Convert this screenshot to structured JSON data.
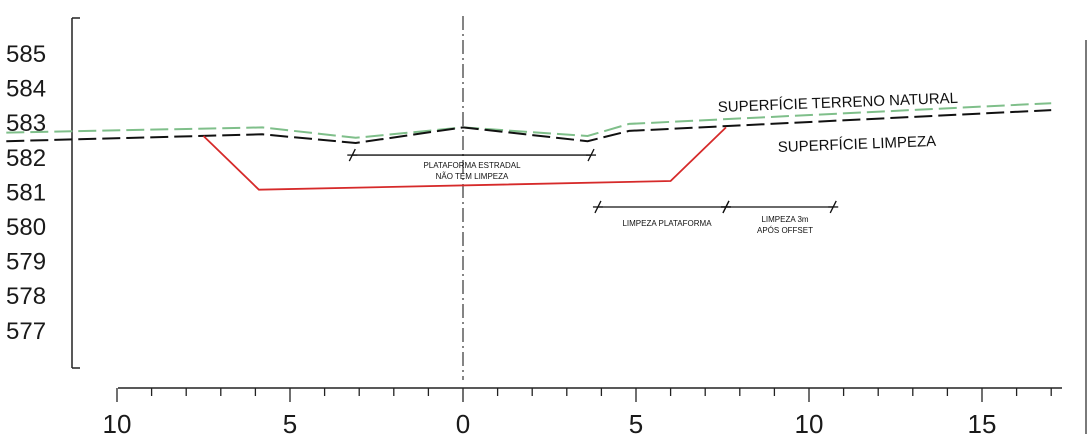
{
  "chart_data": {
    "type": "line",
    "y_ticks": [
      "585",
      "584",
      "583",
      "582",
      "581",
      "580",
      "579",
      "578",
      "577"
    ],
    "x_ticks": [
      "10",
      "5",
      "0",
      "5",
      "10",
      "15"
    ],
    "x_tick_values": [
      -10,
      -5,
      0,
      5,
      10,
      15
    ],
    "x_range": [
      -10,
      17
    ],
    "y_range": [
      576,
      586
    ],
    "labels": {
      "terreno": "SUPERFÍCIE TERRENO NATURAL",
      "limpeza": "SUPERFÍCIE LIMPEZA",
      "plataforma_l1": "PLATAFORMA ESTRADAL",
      "plataforma_l2": "NÃO TEM LIMPEZA",
      "limpeza_plataforma": "LIMPEZA PLATAFORMA",
      "limpeza3m_l1": "LIMPEZA 3m",
      "limpeza3m_l2": "APÓS OFFSET"
    },
    "series": [
      {
        "key": "terreno",
        "color": "#7fbf8a",
        "dash": true,
        "points": [
          [
            -13.2,
            582.7
          ],
          [
            -5.8,
            582.85
          ],
          [
            -3.1,
            582.55
          ],
          [
            0,
            582.85
          ],
          [
            3.6,
            582.6
          ],
          [
            4.8,
            582.95
          ],
          [
            17,
            583.55
          ]
        ]
      },
      {
        "key": "limpeza",
        "color": "#111111",
        "dash": true,
        "points": [
          [
            -13.2,
            582.45
          ],
          [
            -5.8,
            582.65
          ],
          [
            -3.1,
            582.4
          ],
          [
            0,
            582.85
          ],
          [
            3.6,
            582.45
          ],
          [
            4.8,
            582.75
          ],
          [
            17,
            583.35
          ]
        ]
      },
      {
        "key": "offset",
        "color": "#d62a2a",
        "dash": false,
        "points": [
          [
            -7.5,
            582.6
          ],
          [
            -5.9,
            581.05
          ],
          [
            6.0,
            581.3
          ],
          [
            7.6,
            582.85
          ]
        ]
      }
    ],
    "dimensions": [
      {
        "from": -3.2,
        "to": 3.7,
        "y": 582.05
      },
      {
        "from": 3.9,
        "to": 7.6,
        "y": 580.55
      },
      {
        "from": 7.6,
        "to": 10.7,
        "y": 580.55
      }
    ],
    "colors": {
      "axis": "#222222",
      "centerline": "#333333"
    }
  }
}
